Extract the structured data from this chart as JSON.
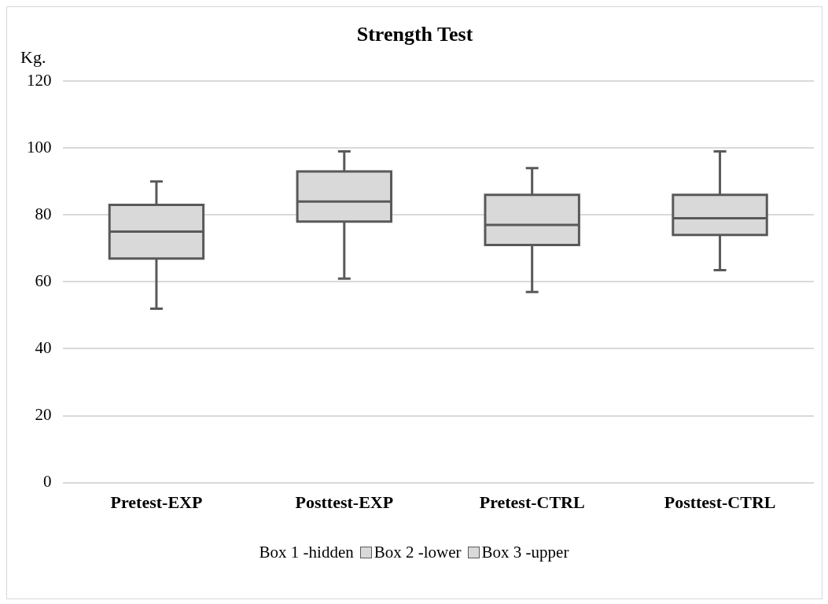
{
  "chart_data": {
    "type": "box",
    "title": "Strength Test",
    "ylabel": "Kg.",
    "categories": [
      "Pretest-EXP",
      "Posttest-EXP",
      "Pretest-CTRL",
      "Posttest-CTRL"
    ],
    "color": "#d9d9d9",
    "boxes": [
      {
        "low": 52,
        "q1": 67,
        "median": 75,
        "q3": 83,
        "high": 90
      },
      {
        "low": 61,
        "q1": 78,
        "median": 84,
        "q3": 93,
        "high": 99
      },
      {
        "low": 57,
        "q1": 71,
        "median": 77,
        "q3": 86,
        "high": 94
      },
      {
        "low": 63.5,
        "q1": 74,
        "median": 79,
        "q3": 86,
        "high": 99
      }
    ],
    "annotations": [
      "Box 1 -hidden",
      "Box 2 -lower",
      "Box 3 -upper"
    ],
    "ylim": [
      0,
      120
    ],
    "yticks": [
      0,
      20,
      40,
      60,
      80,
      100,
      120
    ],
    "grid": "y"
  }
}
